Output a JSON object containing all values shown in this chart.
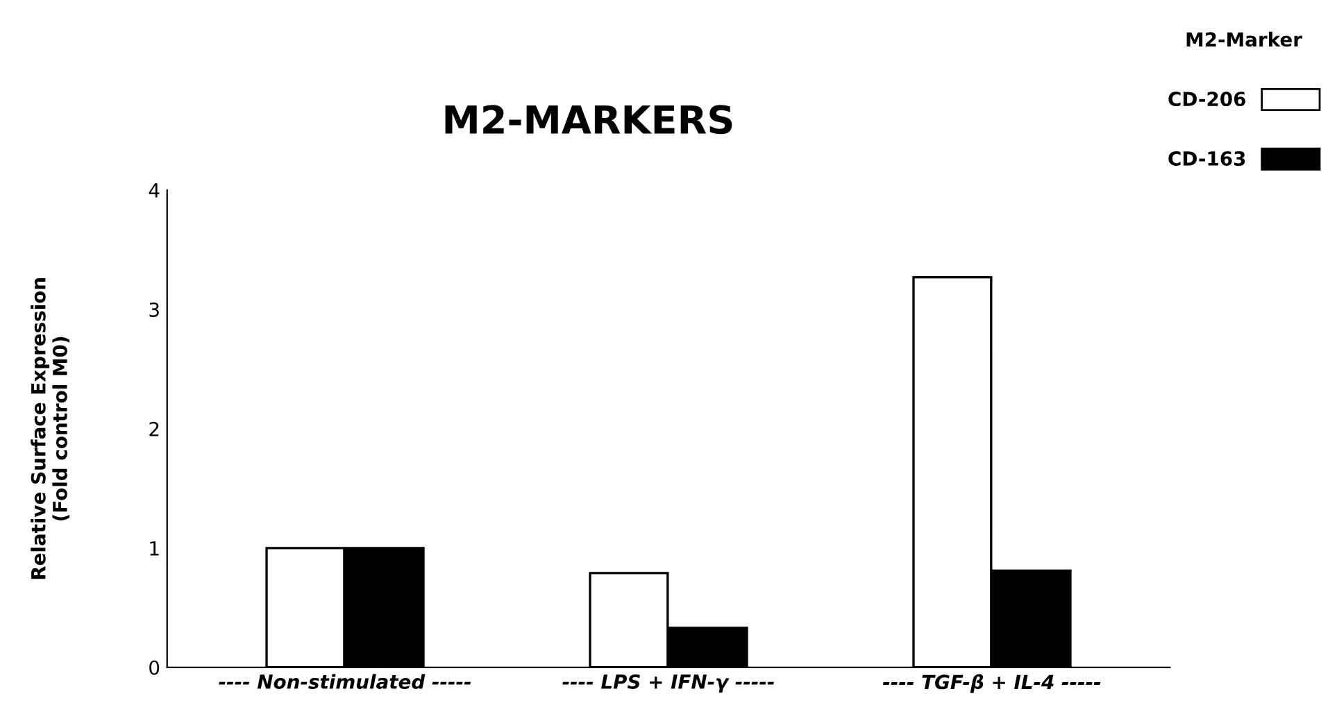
{
  "chart_data": {
    "type": "bar",
    "title": "M2-MARKERS",
    "ylabel": "Relative Surface Expression\n(Fold control M0)",
    "categories": [
      "---- Non-stimulated -----",
      "---- LPS + IFN-γ -----",
      "---- TGF-β + IL-4 -----"
    ],
    "series": [
      {
        "name": "CD-206",
        "color": "#ffffff",
        "values": [
          1.0,
          0.79,
          3.27
        ]
      },
      {
        "name": "CD-163",
        "color": "#000000",
        "values": [
          1.0,
          0.33,
          0.81
        ]
      }
    ],
    "legend_title": "M2-Marker",
    "legend": "top right",
    "ylim": [
      0,
      4
    ],
    "yticks": [
      0,
      1,
      2,
      3,
      4
    ],
    "grid": false
  }
}
